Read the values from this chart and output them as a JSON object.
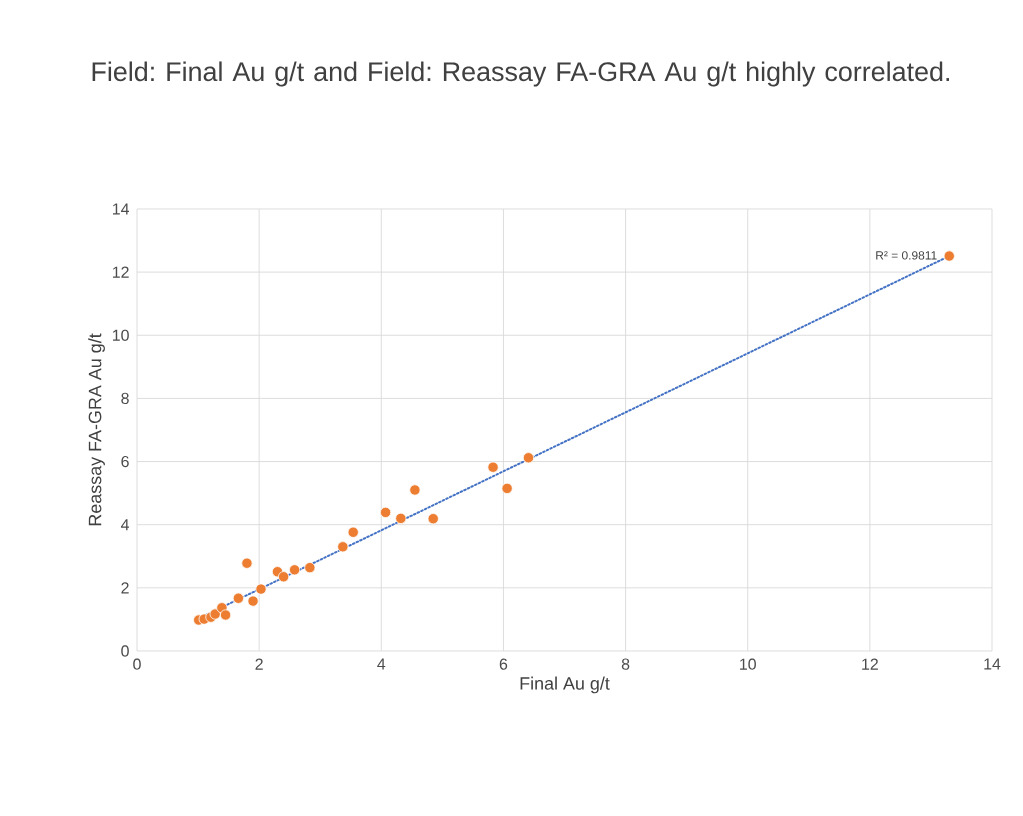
{
  "chart_data": {
    "type": "scatter",
    "title": "Field: Final Au g/t and Field: Reassay FA-GRA Au g/t highly correlated.",
    "xlabel": "Final Au g/t",
    "ylabel": "Reassay FA-GRA Au g/t",
    "xlim": [
      0,
      14
    ],
    "ylim": [
      0,
      14
    ],
    "xticks": [
      0,
      2,
      4,
      6,
      8,
      10,
      12,
      14
    ],
    "yticks": [
      0,
      2,
      4,
      6,
      8,
      10,
      12,
      14
    ],
    "grid": true,
    "marker": "circle",
    "annotations": [
      "R² = 0.9811"
    ],
    "series": [
      {
        "color": "#ed7d31",
        "x": [
          1.01,
          1.1,
          1.21,
          1.28,
          1.39,
          1.45,
          1.66,
          1.8,
          1.9,
          2.03,
          2.3,
          2.4,
          2.58,
          2.83,
          3.37,
          3.54,
          4.07,
          4.32,
          4.55,
          4.85,
          5.83,
          6.06,
          6.41,
          13.3
        ],
        "values": [
          0.98,
          1.01,
          1.07,
          1.17,
          1.37,
          1.14,
          1.67,
          2.78,
          1.58,
          1.96,
          2.51,
          2.35,
          2.57,
          2.64,
          3.3,
          3.76,
          4.39,
          4.2,
          5.1,
          4.19,
          5.82,
          5.15,
          6.12,
          12.51
        ]
      },
      {
        "type": "line",
        "color": "#4472c4",
        "line_style": "dotted",
        "marker": "none",
        "x": [
          1.01,
          13.3
        ],
        "values": [
          1.03,
          12.51
        ]
      }
    ]
  }
}
